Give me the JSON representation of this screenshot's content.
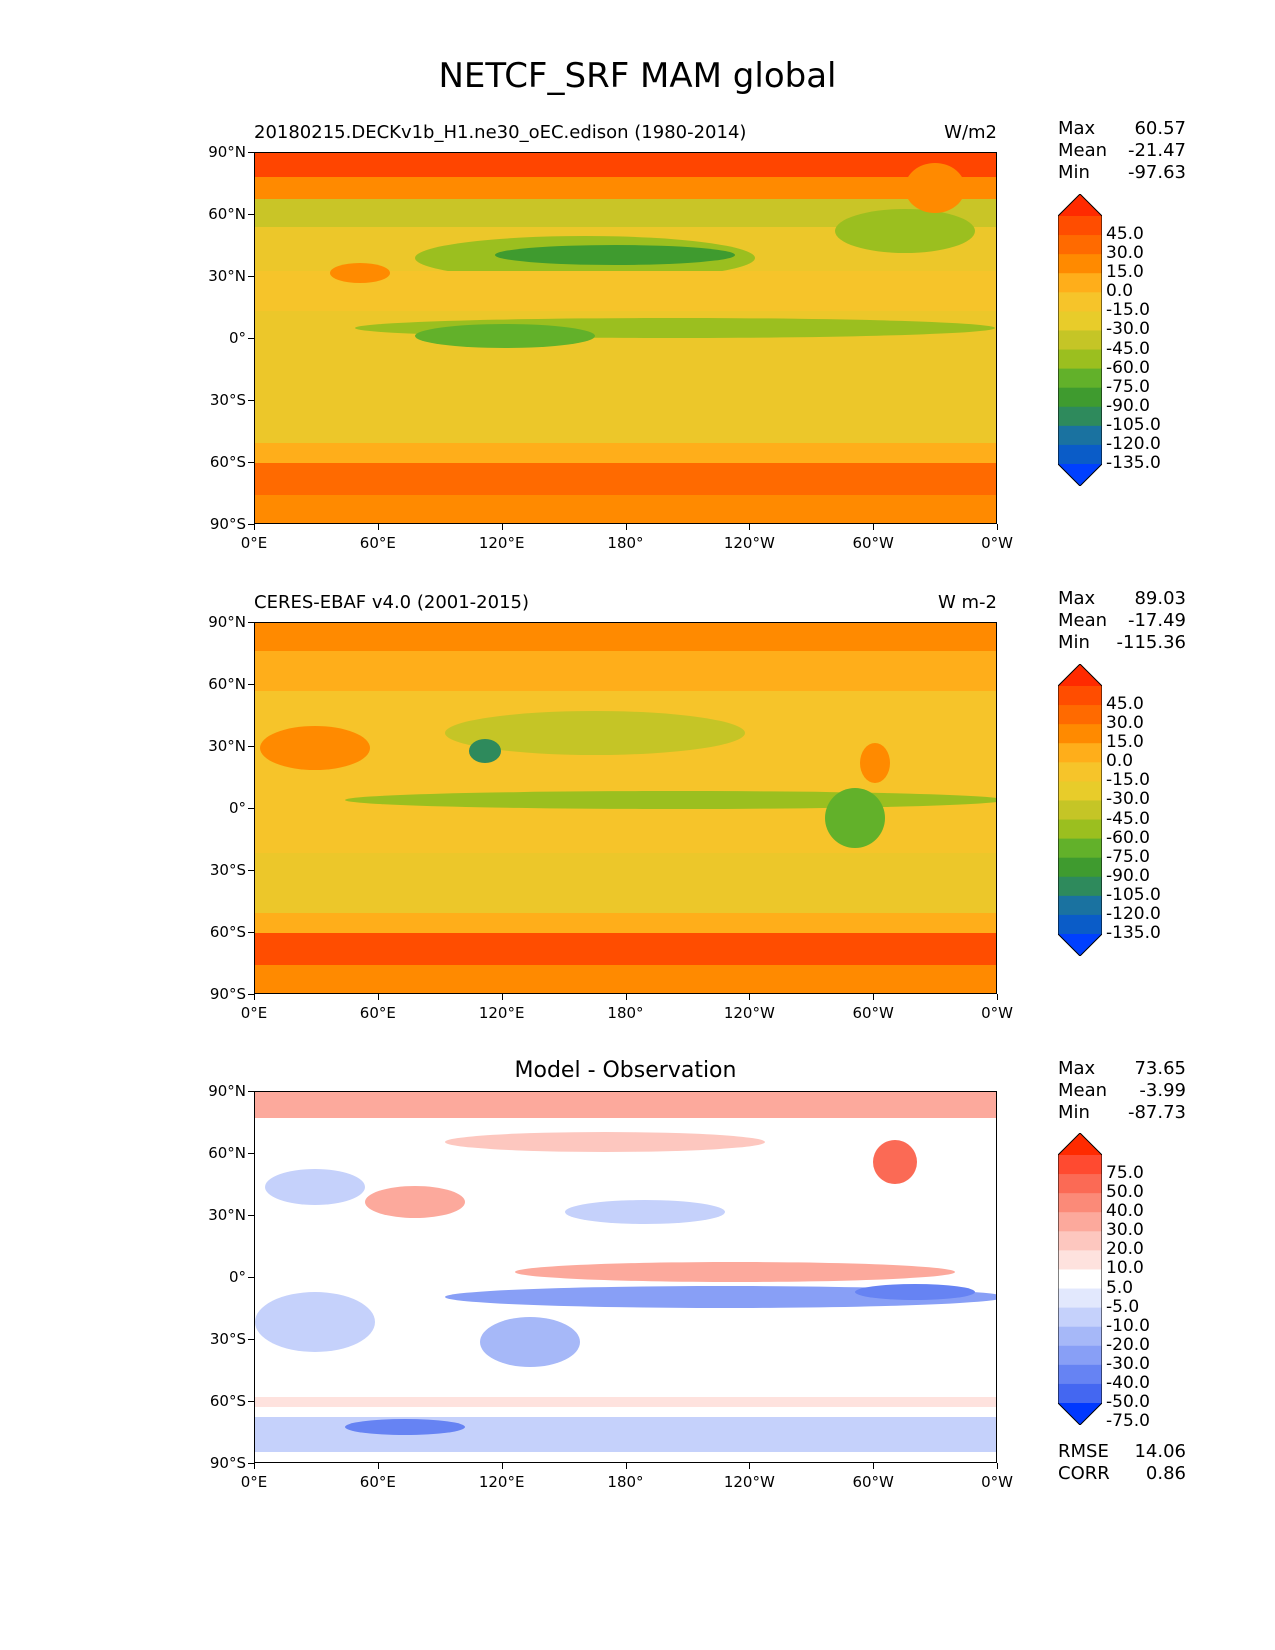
{
  "figure": {
    "title": "NETCF_SRF MAM global"
  },
  "axes": {
    "lat_ticks": [
      "90°N",
      "60°N",
      "30°N",
      "0°",
      "30°S",
      "60°S",
      "90°S"
    ],
    "lon_ticks": [
      "0°E",
      "60°E",
      "120°E",
      "180°",
      "120°W",
      "60°W",
      "0°W"
    ]
  },
  "panels": [
    {
      "id": "model",
      "title_left": "20180215.DECKv1b_H1.ne30_oEC.edison (1980-2014)",
      "title_right": "W/m2",
      "title_center": "",
      "stats": [
        {
          "label": "Max",
          "value": "60.57"
        },
        {
          "label": "Mean",
          "value": "-21.47"
        },
        {
          "label": "Min",
          "value": "-97.63"
        }
      ],
      "colorbar": {
        "levels": [
          "45.0",
          "30.0",
          "15.0",
          "0.0",
          "-15.0",
          "-30.0",
          "-45.0",
          "-60.0",
          "-75.0",
          "-90.0",
          "-105.0",
          "-120.0",
          "-135.0"
        ],
        "colors": [
          "#ff2a00",
          "#ff4d00",
          "#ff6a00",
          "#ff8a00",
          "#ffae1a",
          "#f6c42a",
          "#e8cc2a",
          "#c5c526",
          "#9bbf1f",
          "#62b12a",
          "#3f9b2f",
          "#2e8a5c",
          "#1a72a0",
          "#0a5cc8",
          "#0040ff"
        ]
      }
    },
    {
      "id": "obs",
      "title_left": "CERES-EBAF v4.0 (2001-2015)",
      "title_right": "W m-2",
      "title_center": "",
      "stats": [
        {
          "label": "Max",
          "value": "89.03"
        },
        {
          "label": "Mean",
          "value": "-17.49"
        },
        {
          "label": "Min",
          "value": "-115.36"
        }
      ],
      "colorbar": {
        "levels": [
          "45.0",
          "30.0",
          "15.0",
          "0.0",
          "-15.0",
          "-30.0",
          "-45.0",
          "-60.0",
          "-75.0",
          "-90.0",
          "-105.0",
          "-120.0",
          "-135.0"
        ],
        "colors": [
          "#ff2a00",
          "#ff4d00",
          "#ff6a00",
          "#ff8a00",
          "#ffae1a",
          "#f6c42a",
          "#e8cc2a",
          "#c5c526",
          "#9bbf1f",
          "#62b12a",
          "#3f9b2f",
          "#2e8a5c",
          "#1a72a0",
          "#0a5cc8",
          "#0040ff"
        ]
      }
    },
    {
      "id": "diff",
      "title_left": "",
      "title_right": "",
      "title_center": "Model - Observation",
      "stats": [
        {
          "label": "Max",
          "value": "73.65"
        },
        {
          "label": "Mean",
          "value": "-3.99"
        },
        {
          "label": "Min",
          "value": "-87.73"
        }
      ],
      "extra_stats": [
        {
          "label": "RMSE",
          "value": "14.06"
        },
        {
          "label": "CORR",
          "value": "0.86"
        }
      ],
      "colorbar": {
        "levels": [
          "75.0",
          "50.0",
          "40.0",
          "30.0",
          "20.0",
          "10.0",
          "5.0",
          "-5.0",
          "-10.0",
          "-20.0",
          "-30.0",
          "-40.0",
          "-50.0",
          "-75.0"
        ],
        "colors": [
          "#ff2a00",
          "#ff4a30",
          "#fb6a55",
          "#fb8a78",
          "#fca99c",
          "#fdc7bf",
          "#fee2de",
          "#ffffff",
          "#e2e8fd",
          "#c5d1fb",
          "#a6b8f8",
          "#889ff6",
          "#6683f3",
          "#4467f1",
          "#0038ff"
        ]
      }
    }
  ]
}
